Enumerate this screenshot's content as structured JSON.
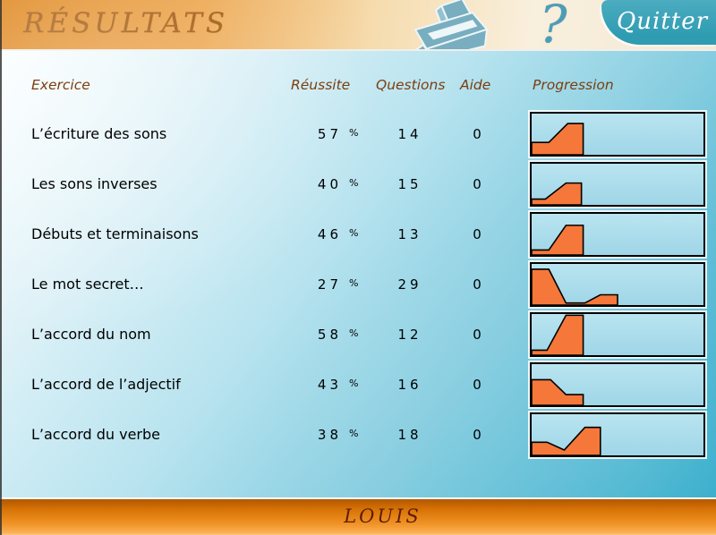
{
  "header": {
    "title": "RÉSULTATS",
    "quit_label": "Quitter",
    "help_glyph": "?"
  },
  "columns": {
    "exercise": "Exercice",
    "success": "Réussite",
    "questions": "Questions",
    "aide": "Aide",
    "progression": "Progression"
  },
  "shared": {
    "percent": "%",
    "chart_fill": "#f5783a",
    "chart_stroke": "#000000",
    "chart_bg": "#a6dcec"
  },
  "rows": [
    {
      "name": "L’écriture des sons",
      "success": 57,
      "questions": 14,
      "aide": 0,
      "progression": {
        "type": "area",
        "points": [
          [
            0,
            0.3
          ],
          [
            0.1,
            0.3
          ],
          [
            0.21,
            0.76
          ],
          [
            0.3,
            0.76
          ],
          [
            0.3,
            0
          ]
        ]
      }
    },
    {
      "name": "Les sons inverses",
      "success": 40,
      "questions": 15,
      "aide": 0,
      "progression": {
        "type": "area",
        "points": [
          [
            0,
            0.14
          ],
          [
            0.08,
            0.14
          ],
          [
            0.2,
            0.53
          ],
          [
            0.29,
            0.53
          ],
          [
            0.29,
            0
          ]
        ]
      }
    },
    {
      "name": "Débuts et terminaisons",
      "success": 46,
      "questions": 13,
      "aide": 0,
      "progression": {
        "type": "area",
        "points": [
          [
            0,
            0.12
          ],
          [
            0.1,
            0.12
          ],
          [
            0.2,
            0.72
          ],
          [
            0.3,
            0.72
          ],
          [
            0.3,
            0
          ]
        ]
      }
    },
    {
      "name": "Le mot secret…",
      "success": 27,
      "questions": 29,
      "aide": 0,
      "progression": {
        "type": "area",
        "points": [
          [
            0,
            0.87
          ],
          [
            0.1,
            0.87
          ],
          [
            0.2,
            0.05
          ],
          [
            0.31,
            0.05
          ],
          [
            0.4,
            0.25
          ],
          [
            0.5,
            0.25
          ],
          [
            0.5,
            0
          ]
        ]
      }
    },
    {
      "name": "L’accord du nom",
      "success": 58,
      "questions": 12,
      "aide": 0,
      "progression": {
        "type": "area",
        "points": [
          [
            0,
            0.12
          ],
          [
            0.09,
            0.12
          ],
          [
            0.2,
            0.97
          ],
          [
            0.3,
            0.97
          ],
          [
            0.3,
            0
          ]
        ]
      }
    },
    {
      "name": "L’accord de l’adjectif",
      "success": 43,
      "questions": 16,
      "aide": 0,
      "progression": {
        "type": "area",
        "points": [
          [
            0,
            0.62
          ],
          [
            0.11,
            0.62
          ],
          [
            0.2,
            0.26
          ],
          [
            0.3,
            0.26
          ],
          [
            0.3,
            0
          ]
        ]
      }
    },
    {
      "name": "L’accord du verbe",
      "success": 38,
      "questions": 18,
      "aide": 0,
      "progression": {
        "type": "area",
        "points": [
          [
            0,
            0.32
          ],
          [
            0.09,
            0.32
          ],
          [
            0.19,
            0.13
          ],
          [
            0.31,
            0.68
          ],
          [
            0.4,
            0.68
          ],
          [
            0.4,
            0
          ]
        ]
      }
    }
  ],
  "footer": {
    "student_name": "LOUIS"
  },
  "colors": {
    "header_orange": "#dd7f10",
    "body_cyan": "#2ba9c9",
    "teal_accent": "#2f9cb2",
    "chart_orange": "#f5783a",
    "label_brown": "#7c3d0e",
    "footer_orange": "#ef9225",
    "footer_text": "#5e1c08"
  }
}
